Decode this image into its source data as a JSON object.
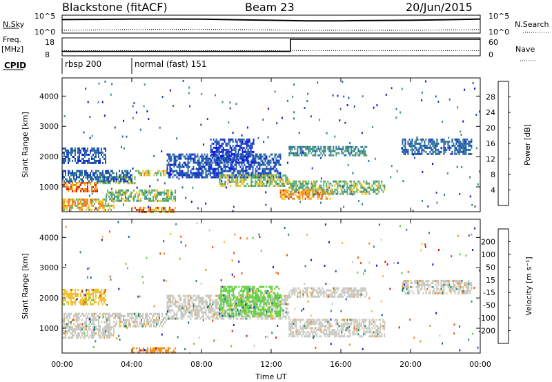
{
  "header": {
    "radar": "Blackstone (fitACF)",
    "beam": "Beam 23",
    "date": "20/Jun/2015"
  },
  "chart_data": [
    {
      "type": "line",
      "name": "noise-panel",
      "ylabel_left": "N.Sky",
      "ylabel_right": "N.Search",
      "left_ticks": [
        "10^5",
        "10^0"
      ],
      "right_ticks": [
        "10^5",
        "10^0"
      ],
      "scale": "log",
      "series": [
        {
          "name": "N.Sky",
          "style": "solid",
          "x": [
            0,
            2,
            4,
            6,
            8,
            10,
            12,
            14,
            16,
            18,
            20,
            22,
            24
          ],
          "values": [
            10000,
            12000,
            15000,
            15000,
            14000,
            9000,
            6000,
            4000,
            4000,
            5000,
            6000,
            9000,
            15000
          ]
        },
        {
          "name": "N.Search",
          "style": "dotted",
          "x": [
            0,
            2,
            4,
            6,
            8,
            10,
            12,
            14,
            16,
            18,
            20,
            22,
            24
          ],
          "values": [
            3,
            4,
            5,
            6,
            6,
            5,
            4,
            3,
            3,
            3,
            3,
            4,
            5
          ]
        }
      ]
    },
    {
      "type": "line",
      "name": "frequency-panel",
      "ylabel_left": "Freq.",
      "ylabel_left_unit": "[MHz]",
      "ylabel_right": "Nave",
      "left_ticks": [
        "18",
        "8"
      ],
      "right_ticks": [
        "60",
        "0"
      ],
      "series": [
        {
          "name": "Freq",
          "style": "solid",
          "x": [
            0,
            13.1,
            13.1,
            24
          ],
          "values": [
            10,
            10,
            18,
            18
          ]
        },
        {
          "name": "Nave",
          "style": "dotted",
          "x": [
            0,
            24
          ],
          "values": [
            15,
            15
          ]
        }
      ]
    },
    {
      "type": "table",
      "name": "cpid-panel",
      "label": "CPID",
      "segments": [
        {
          "start": 0,
          "end": 4,
          "label": "rbsp 200"
        },
        {
          "start": 4,
          "end": 24,
          "label": "normal (fast) 151"
        }
      ]
    },
    {
      "type": "heatmap",
      "name": "power",
      "ylabel": "Slant Range [km]",
      "ylim": [
        180,
        4600
      ],
      "yticks": [
        1000,
        2000,
        3000,
        4000
      ],
      "xlim": [
        0,
        24
      ],
      "xticks": [
        "00:00",
        "04:00",
        "08:00",
        "12:00",
        "16:00",
        "20:00",
        "00:00"
      ],
      "colorbar_label": "Power [dB]",
      "colorbar_ticks": [
        4,
        8,
        12,
        16,
        20,
        24,
        28
      ],
      "colorbar_range": [
        0,
        32
      ],
      "colors": [
        "#1010f0",
        "#1a45b8",
        "#2a6fa0",
        "#3f8e7e",
        "#5ab06a",
        "#f0c020",
        "#f08020",
        "#e02010"
      ],
      "regions": [
        {
          "t": [
            0.0,
            2.0
          ],
          "r": [
            850,
            1150
          ],
          "level": 28
        },
        {
          "t": [
            2.0,
            4.2
          ],
          "r": [
            1100,
            1350
          ],
          "level": 20
        },
        {
          "t": [
            4.2,
            6.0
          ],
          "r": [
            1350,
            1550
          ],
          "level": 22
        },
        {
          "t": [
            0.0,
            4.0
          ],
          "r": [
            1150,
            1550
          ],
          "level": 8
        },
        {
          "t": [
            0.0,
            3.0
          ],
          "r": [
            200,
            600
          ],
          "level": 24
        },
        {
          "t": [
            2.5,
            6.5
          ],
          "r": [
            500,
            900
          ],
          "level": 18
        },
        {
          "t": [
            0.0,
            2.5
          ],
          "r": [
            1800,
            2300
          ],
          "level": 6
        },
        {
          "t": [
            6.0,
            12.5
          ],
          "r": [
            1300,
            2100
          ],
          "level": 6
        },
        {
          "t": [
            8.5,
            11.0
          ],
          "r": [
            1800,
            2600
          ],
          "level": 4
        },
        {
          "t": [
            9.0,
            13.0
          ],
          "r": [
            1000,
            1400
          ],
          "level": 20
        },
        {
          "t": [
            13.0,
            18.5
          ],
          "r": [
            750,
            1200
          ],
          "level": 18
        },
        {
          "t": [
            12.5,
            15.5
          ],
          "r": [
            600,
            900
          ],
          "level": 26
        },
        {
          "t": [
            13.0,
            17.5
          ],
          "r": [
            2050,
            2350
          ],
          "level": 12
        },
        {
          "t": [
            19.5,
            23.5
          ],
          "r": [
            2100,
            2600
          ],
          "level": 8
        },
        {
          "t": [
            4.0,
            6.5
          ],
          "r": [
            180,
            320
          ],
          "level": 26
        }
      ]
    },
    {
      "type": "heatmap",
      "name": "velocity",
      "ylabel": "Slant Range [km]",
      "ylim": [
        180,
        4600
      ],
      "yticks": [
        1000,
        2000,
        3000,
        4000
      ],
      "xlim": [
        0,
        24
      ],
      "xticks": [
        "00:00",
        "04:00",
        "08:00",
        "12:00",
        "16:00",
        "20:00",
        "00:00"
      ],
      "xlabel": "Time UT",
      "colorbar_label": "Velocity [m s⁻¹]",
      "colorbar_ticks": [
        "200",
        "100",
        "50",
        "15",
        "-15",
        "-50",
        "-100",
        "-200"
      ],
      "colors": [
        "#1515e0",
        "#1a55b8",
        "#2a8a5a",
        "#60d040",
        "#c8c8c0",
        "#f0c030",
        "#f09020",
        "#f05010",
        "#e01010"
      ],
      "regions": [
        {
          "t": [
            0.0,
            6.0
          ],
          "r": [
            1050,
            1500
          ],
          "v": 0
        },
        {
          "t": [
            0.0,
            3.0
          ],
          "r": [
            700,
            1050
          ],
          "v": 0
        },
        {
          "t": [
            6.0,
            13.0
          ],
          "r": [
            1300,
            2100
          ],
          "v": 0
        },
        {
          "t": [
            9.0,
            12.5
          ],
          "r": [
            1400,
            2400
          ],
          "v": 40
        },
        {
          "t": [
            13.0,
            18.5
          ],
          "r": [
            700,
            1300
          ],
          "v": 0
        },
        {
          "t": [
            13.0,
            17.5
          ],
          "r": [
            2050,
            2350
          ],
          "v": 0
        },
        {
          "t": [
            19.5,
            23.5
          ],
          "r": [
            2150,
            2600
          ],
          "v": 0
        },
        {
          "t": [
            0.0,
            2.5
          ],
          "r": [
            1800,
            2300
          ],
          "v": -40
        },
        {
          "t": [
            4.0,
            6.5
          ],
          "r": [
            180,
            350
          ],
          "v": -60
        }
      ]
    }
  ]
}
